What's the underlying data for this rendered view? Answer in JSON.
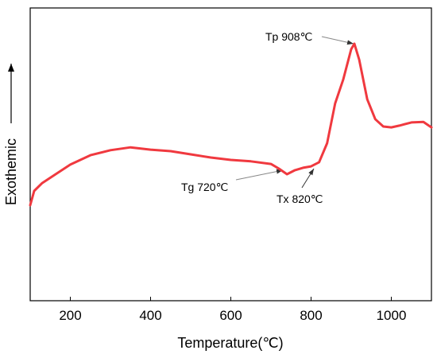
{
  "chart_data": {
    "type": "line",
    "xlabel": "Temperature(℃)",
    "ylabel": "Exothemic",
    "x": [
      100,
      110,
      130,
      160,
      200,
      250,
      300,
      350,
      400,
      450,
      500,
      550,
      600,
      650,
      700,
      720,
      740,
      760,
      780,
      800,
      820,
      840,
      860,
      880,
      900,
      908,
      920,
      940,
      960,
      980,
      1000,
      1020,
      1050,
      1080,
      1100
    ],
    "series": [
      {
        "color": "#f0393f",
        "values": [
          32.6,
          37.5,
          40.2,
          42.9,
          46.5,
          49.7,
          51.4,
          52.4,
          51.6,
          51.1,
          50,
          48.9,
          48.1,
          47.6,
          46.7,
          45.1,
          43.2,
          44.6,
          45.4,
          45.9,
          47.3,
          53.8,
          67.4,
          75.5,
          85.9,
          87.8,
          82.3,
          68.8,
          62,
          59.5,
          59.2,
          59.8,
          60.9,
          61.1,
          59.2
        ]
      }
    ],
    "xlim": [
      100,
      1100
    ],
    "xticks": [
      200,
      400,
      600,
      800,
      1000
    ],
    "ylim": [
      0,
      100
    ],
    "annotations": [
      "Tp 908℃",
      "Tg 720℃",
      "Tx 820℃"
    ]
  }
}
